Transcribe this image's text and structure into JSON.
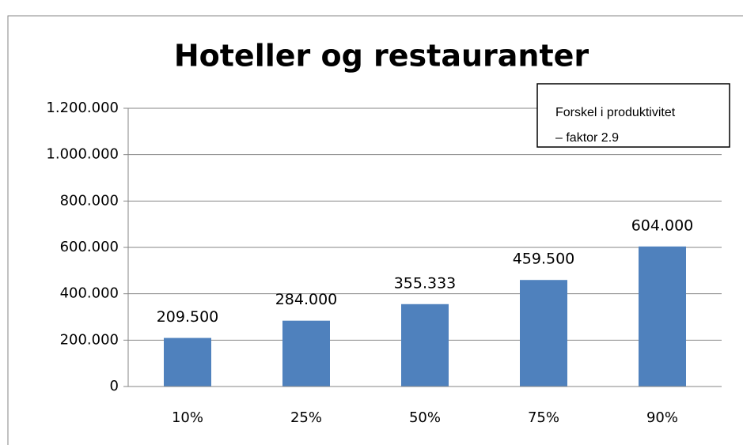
{
  "chart_data": {
    "type": "bar",
    "title": "Hoteller og restauranter",
    "categories": [
      "10%",
      "25%",
      "50%",
      "75%",
      "90%"
    ],
    "values": [
      209500,
      284000,
      355333,
      459500,
      604000
    ],
    "value_labels": [
      "209.500",
      "284.000",
      "355.333",
      "459.500",
      "604.000"
    ],
    "color": "#4f81bd",
    "ylim": [
      0,
      1200000
    ],
    "yticks": [
      0,
      {
        "value": 200000,
        "label": "200.000"
      },
      {
        "value": 400000,
        "label": "400.000"
      },
      {
        "value": 600000,
        "label": "600.000"
      },
      {
        "value": 800000,
        "label": "800.000"
      },
      {
        "value": 1000000,
        "label": "1.000.000"
      },
      {
        "value": 1200000,
        "label": "1.200.000"
      }
    ],
    "grid": true,
    "annotation": [
      "Forskel i produktivitet",
      "– faktor 2.9"
    ]
  }
}
